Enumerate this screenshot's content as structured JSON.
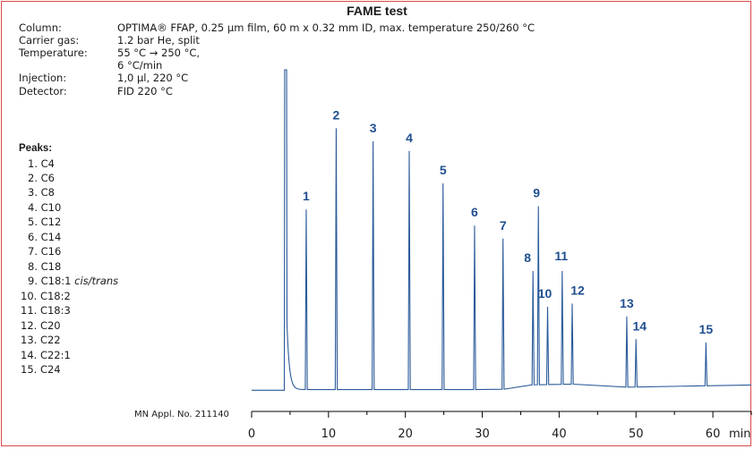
{
  "title": "FAME test",
  "conditions": [
    {
      "label": "Column:",
      "value": "OPTIMA® FFAP, 0.25 µm film, 60 m x 0.32 mm ID, max. temperature 250/260 °C"
    },
    {
      "label": "Carrier gas:",
      "value": "1.2 bar He, split"
    },
    {
      "label": "Temperature:",
      "value": "55 °C → 250 °C,"
    },
    {
      "label": "",
      "value": "6 °C/min"
    },
    {
      "label": "Injection:",
      "value": "1,0 µl, 220 °C"
    },
    {
      "label": "Detector:",
      "value": "FID 220 °C"
    }
  ],
  "peaks_heading": "Peaks:",
  "peaks": [
    {
      "num": "1.",
      "name": "C4",
      "note": ""
    },
    {
      "num": "2.",
      "name": "C6",
      "note": ""
    },
    {
      "num": "3.",
      "name": "C8",
      "note": ""
    },
    {
      "num": "4.",
      "name": "C10",
      "note": ""
    },
    {
      "num": "5.",
      "name": "C12",
      "note": ""
    },
    {
      "num": "6.",
      "name": "C14",
      "note": ""
    },
    {
      "num": "7.",
      "name": "C16",
      "note": ""
    },
    {
      "num": "8.",
      "name": "C18",
      "note": ""
    },
    {
      "num": "9.",
      "name": "C18:1",
      "note": "cis/trans"
    },
    {
      "num": "10.",
      "name": "C18:2",
      "note": ""
    },
    {
      "num": "11.",
      "name": "C18:3",
      "note": ""
    },
    {
      "num": "12.",
      "name": "C20",
      "note": ""
    },
    {
      "num": "13.",
      "name": "C22",
      "note": ""
    },
    {
      "num": "14.",
      "name": "C22:1",
      "note": ""
    },
    {
      "num": "15.",
      "name": "C24",
      "note": ""
    }
  ],
  "application_no": "MN Appl. No. 211140",
  "colors": {
    "trace": "#2a5a9a",
    "peak_label": "#1f4f8f",
    "frame": "#d94b4b",
    "axis": "#000000"
  },
  "chart_data": {
    "type": "line",
    "title": "FAME test",
    "xlabel": "min",
    "ylabel": "",
    "xlim": [
      0,
      65
    ],
    "ylim": [
      0,
      100
    ],
    "x_ticks": [
      0,
      10,
      20,
      30,
      40,
      50,
      60
    ],
    "grid": false,
    "baseline": 1.5,
    "solvent_peak": {
      "x": 4.3,
      "y": 100
    },
    "peaks": [
      {
        "label": "1",
        "x": 7.1,
        "y": 57
      },
      {
        "label": "2",
        "x": 11.0,
        "y": 82
      },
      {
        "label": "3",
        "x": 15.8,
        "y": 78
      },
      {
        "label": "4",
        "x": 20.5,
        "y": 75
      },
      {
        "label": "5",
        "x": 24.9,
        "y": 65
      },
      {
        "label": "6",
        "x": 29.0,
        "y": 52
      },
      {
        "label": "7",
        "x": 32.7,
        "y": 48
      },
      {
        "label": "8",
        "x": 36.6,
        "y": 38
      },
      {
        "label": "9",
        "x": 37.3,
        "y": 58
      },
      {
        "label": "10",
        "x": 38.5,
        "y": 27
      },
      {
        "label": "11",
        "x": 40.4,
        "y": 38
      },
      {
        "label": "12",
        "x": 41.7,
        "y": 28
      },
      {
        "label": "13",
        "x": 48.8,
        "y": 24
      },
      {
        "label": "14",
        "x": 50.0,
        "y": 17
      },
      {
        "label": "15",
        "x": 59.1,
        "y": 16
      }
    ]
  }
}
